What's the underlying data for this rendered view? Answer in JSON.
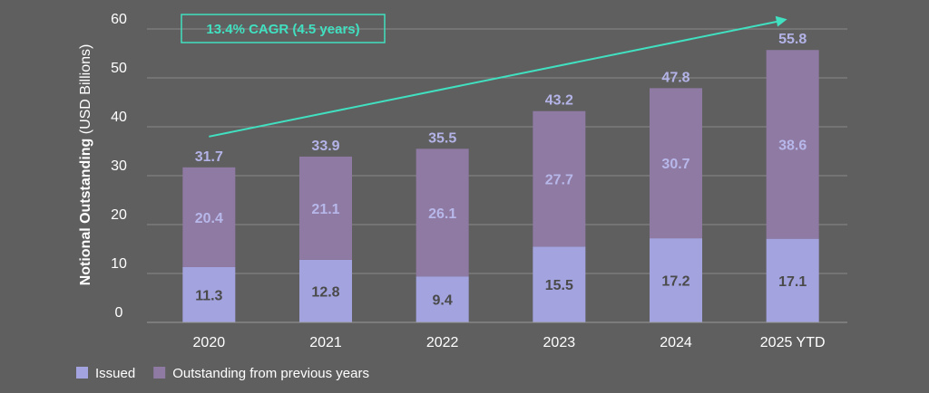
{
  "chart_data": {
    "type": "bar",
    "stacked": true,
    "categories": [
      "2020",
      "2021",
      "2022",
      "2023",
      "2024",
      "2025 YTD"
    ],
    "series": [
      {
        "name": "Issued",
        "values": [
          11.3,
          12.8,
          9.4,
          15.5,
          17.2,
          17.1
        ],
        "color": "#a3a3e0"
      },
      {
        "name": "Outstanding from previous years",
        "values": [
          20.4,
          21.1,
          26.1,
          27.7,
          30.7,
          38.6
        ],
        "color": "#8e7aa3"
      }
    ],
    "totals": [
      31.7,
      33.9,
      35.5,
      43.2,
      47.8,
      55.8
    ],
    "ylabel_bold": "Notional Outstanding",
    "ylabel_unit": " (USD Billions)",
    "ylim": [
      0,
      60
    ],
    "yticks": [
      0,
      10,
      20,
      30,
      40,
      50,
      60
    ],
    "grid": true,
    "legend_position": "bottom-left",
    "annotation": {
      "text": "13.4% CAGR (4.5 years)",
      "color": "#40e0c0",
      "arrow_from": {
        "category": "2020",
        "value": 38
      },
      "arrow_to": {
        "category": "2025 YTD",
        "value": 62
      }
    }
  }
}
